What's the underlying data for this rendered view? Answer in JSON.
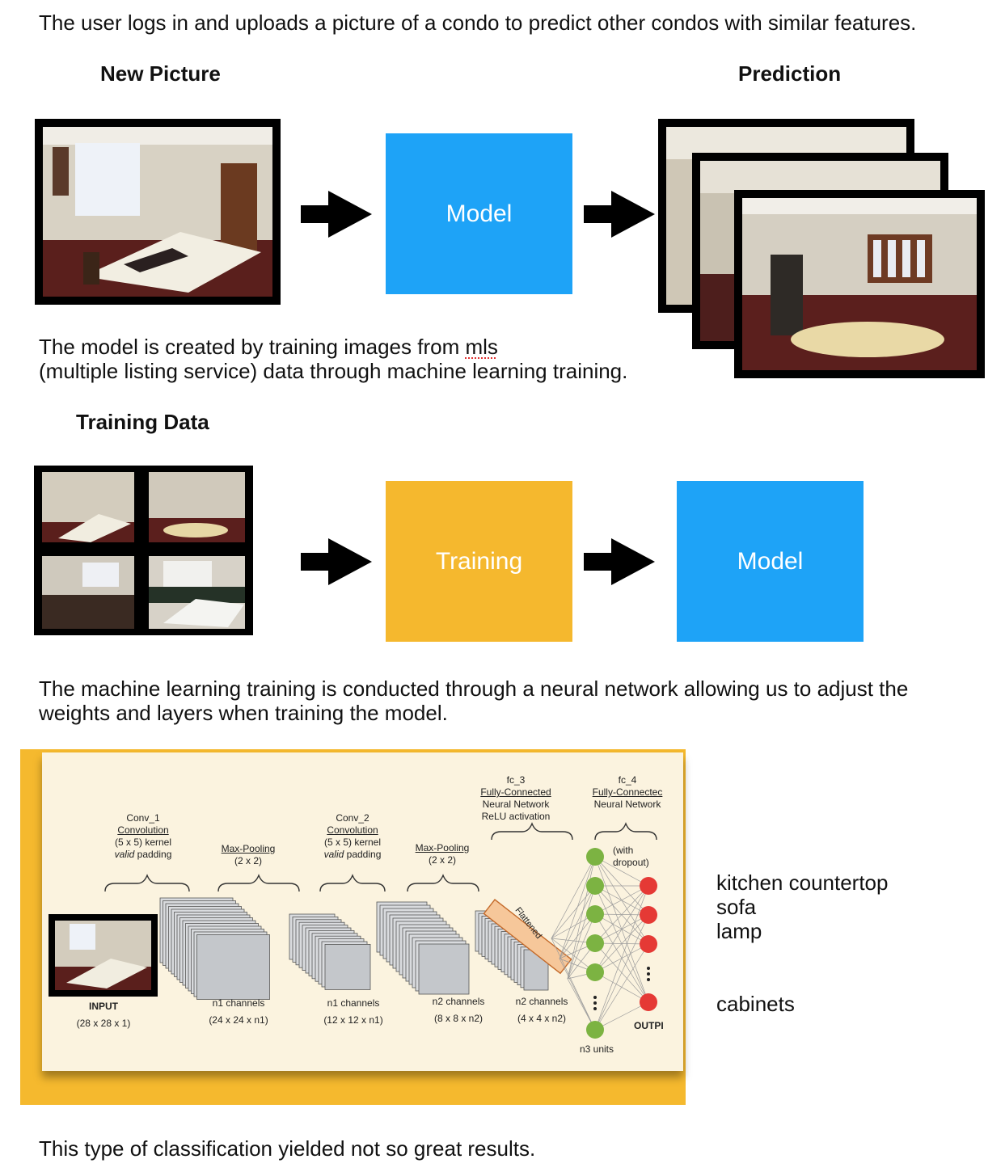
{
  "intro_text": "The user logs in and uploads a picture of a condo to predict other condos with similar features.",
  "headings": {
    "new_picture": "New Picture",
    "prediction": "Prediction",
    "training_data": "Training Data"
  },
  "boxes": {
    "model_top": "Model",
    "training": "Training",
    "model_bottom": "Model"
  },
  "model_text": {
    "line1_prefix": "The model is created by training images from ",
    "line1_underlined": "mls",
    "line2": "(multiple listing service) data through machine learning training."
  },
  "nn_text": {
    "line1": "The machine learning training is conducted through a neural network allowing us to adjust the",
    "line2": "weights and layers when training the model."
  },
  "diagram": {
    "conv1": {
      "name": "Conv_1",
      "type": "Convolution",
      "kernel": "(5 x 5) kernel",
      "padding_em": "valid",
      "padding": "padding"
    },
    "pool1": {
      "name": "Max-Pooling",
      "size": "(2 x 2)"
    },
    "conv2": {
      "name": "Conv_2",
      "type": "Convolution",
      "kernel": "(5 x 5) kernel",
      "padding_em": "valid",
      "padding": "padding"
    },
    "pool2": {
      "name": "Max-Pooling",
      "size": "(2 x 2)"
    },
    "fc3": {
      "name": "fc_3",
      "type": "Fully-Connected",
      "sub": "Neural Network",
      "act": "ReLU activation"
    },
    "fc4": {
      "name": "fc_4",
      "type": "Fully-Connectec",
      "sub": "Neural Network",
      "drop1": "(with",
      "drop2": "dropout)"
    },
    "flattened": "Flattened",
    "input_label": "INPUT",
    "input_dims": "(28 x 28 x 1)",
    "stage1": {
      "ch": "n1 channels",
      "dims": "(24 x 24 x n1)"
    },
    "stage2": {
      "ch": "n1 channels",
      "dims": "(12 x 12 x n1)"
    },
    "stage3": {
      "ch": "n2 channels",
      "dims": "(8 x 8 x n2)"
    },
    "stage4": {
      "ch": "n2 channels",
      "dims": "(4 x 4 x n2)"
    },
    "units": "n3 units",
    "output": "OUTPI"
  },
  "labels": [
    "kitchen countertop",
    "sofa",
    "lamp",
    "cabinets"
  ],
  "conclusion": "This type of classification yielded not so great results.",
  "colors": {
    "model_blue": "#1ea3f7",
    "training_orange": "#f5b82e",
    "panel_orange": "#f5b92e",
    "panel_cream": "#fbf3df",
    "node_green": "#7cb342",
    "node_red": "#e53935"
  }
}
